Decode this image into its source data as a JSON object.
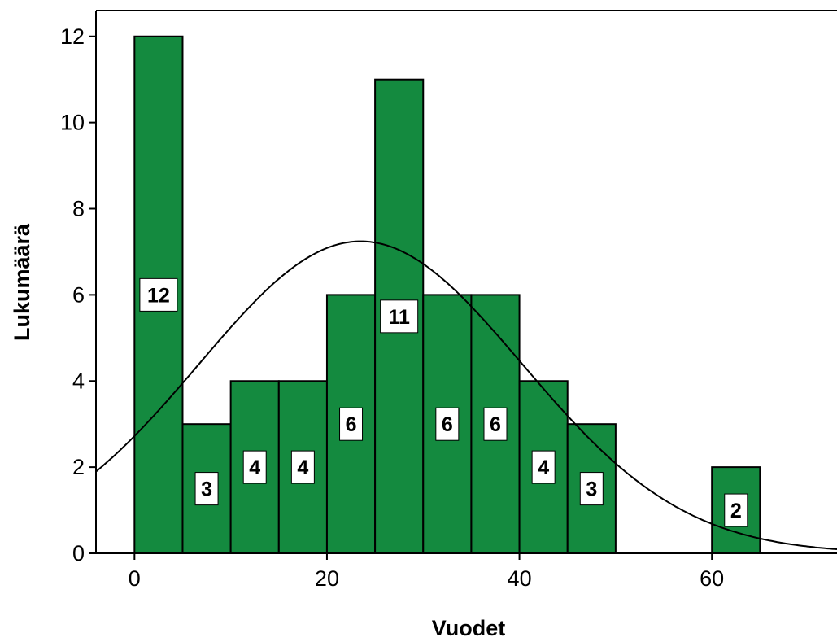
{
  "chart_data": {
    "type": "bar",
    "xlabel": "Vuodet",
    "ylabel": "Lukumäärä",
    "bin_width": 5,
    "bins": [
      {
        "start": 0,
        "end": 5,
        "value": 12
      },
      {
        "start": 5,
        "end": 10,
        "value": 3
      },
      {
        "start": 10,
        "end": 15,
        "value": 4
      },
      {
        "start": 15,
        "end": 20,
        "value": 4
      },
      {
        "start": 20,
        "end": 25,
        "value": 6
      },
      {
        "start": 25,
        "end": 30,
        "value": 11
      },
      {
        "start": 30,
        "end": 35,
        "value": 6
      },
      {
        "start": 35,
        "end": 40,
        "value": 6
      },
      {
        "start": 40,
        "end": 45,
        "value": 4
      },
      {
        "start": 45,
        "end": 50,
        "value": 3
      },
      {
        "start": 60,
        "end": 65,
        "value": 2
      }
    ],
    "data_labels": [
      "12",
      "3",
      "4",
      "4",
      "6",
      "11",
      "6",
      "6",
      "4",
      "3",
      "2"
    ],
    "xlim": [
      -4,
      73
    ],
    "ylim": [
      0,
      12.6
    ],
    "x_ticks": [
      0,
      20,
      40,
      60
    ],
    "x_tick_labels": [
      "0",
      "20",
      "40",
      "60"
    ],
    "y_ticks": [
      0,
      2,
      4,
      6,
      8,
      10,
      12
    ],
    "y_tick_labels": [
      "0",
      "2",
      "4",
      "6",
      "8",
      "10",
      "12"
    ],
    "normal_curve": {
      "mean": 23.5,
      "sd": 16.8
    },
    "grid": false,
    "legend": "none",
    "colors": {
      "bar_fill": "#148a3f",
      "bar_stroke": "#000000",
      "curve": "#000000"
    }
  }
}
